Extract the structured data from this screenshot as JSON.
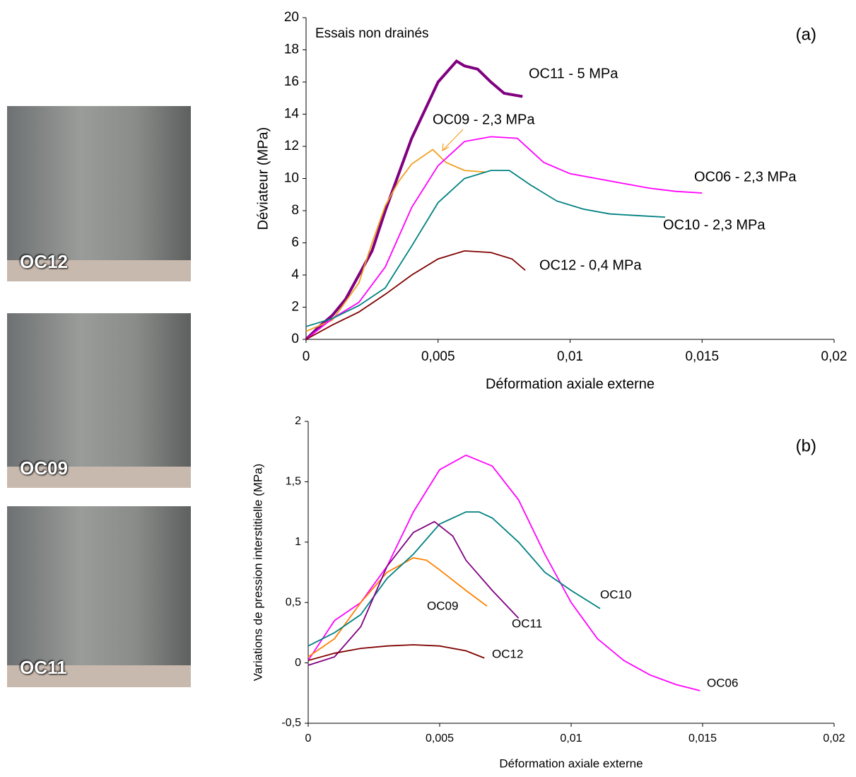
{
  "photos": [
    {
      "label": "OC12"
    },
    {
      "label": "OC09"
    },
    {
      "label": "OC11"
    }
  ],
  "chart_data": [
    {
      "type": "line",
      "annotations": [
        "Essais non drainés",
        "(a)"
      ],
      "xlabel": "Déformation axiale externe",
      "ylabel": "Déviateur (MPa)",
      "xlim": [
        0,
        0.02
      ],
      "ylim": [
        0,
        20
      ],
      "xticks": [
        0,
        {
          "value": 0.005,
          "label": "0,005"
        },
        {
          "value": 0.01,
          "label": "0,01"
        },
        {
          "value": 0.015,
          "label": "0,015"
        },
        {
          "value": 0.02,
          "label": "0,02"
        }
      ],
      "yticks": [
        0,
        2,
        4,
        6,
        8,
        10,
        12,
        14,
        16,
        18,
        20
      ],
      "series": [
        {
          "name": "OC11 - 5 MPa",
          "color": "#800080",
          "x": [
            0,
            0.0005,
            0.001,
            0.0015,
            0.002,
            0.0025,
            0.003,
            0.004,
            0.005,
            0.0057,
            0.006,
            0.0065,
            0.007,
            0.0075,
            0.0082
          ],
          "values": [
            0,
            0.8,
            1.5,
            2.5,
            4,
            5.5,
            8,
            12.5,
            16,
            17.3,
            17,
            16.8,
            16,
            15.3,
            15.1
          ]
        },
        {
          "name": "OC09 - 2,3 MPa",
          "color": "#f0a020",
          "x": [
            0,
            0.001,
            0.002,
            0.0025,
            0.003,
            0.0035,
            0.004,
            0.0048,
            0.0053,
            0.006,
            0.0068
          ],
          "values": [
            0.5,
            1.2,
            3.5,
            6,
            8.3,
            9.8,
            10.9,
            11.8,
            11,
            10.5,
            10.4
          ]
        },
        {
          "name": "OC06 - 2,3 MPa",
          "color": "#ff00ff",
          "x": [
            0,
            0.001,
            0.002,
            0.003,
            0.004,
            0.005,
            0.006,
            0.007,
            0.008,
            0.009,
            0.01,
            0.011,
            0.012,
            0.013,
            0.014,
            0.015
          ],
          "values": [
            0,
            1.3,
            2.3,
            4.5,
            8.2,
            10.8,
            12.3,
            12.6,
            12.5,
            11,
            10.3,
            10,
            9.7,
            9.4,
            9.2,
            9.1
          ]
        },
        {
          "name": "OC10 - 2,3 MPa",
          "color": "#008080",
          "x": [
            0,
            0.001,
            0.002,
            0.003,
            0.004,
            0.005,
            0.006,
            0.007,
            0.0077,
            0.0085,
            0.0095,
            0.0105,
            0.0115,
            0.0125,
            0.0136
          ],
          "values": [
            0.8,
            1.3,
            2.1,
            3.2,
            5.8,
            8.5,
            10,
            10.5,
            10.5,
            9.6,
            8.6,
            8.1,
            7.8,
            7.7,
            7.6
          ]
        },
        {
          "name": "OC12 - 0,4 MPa",
          "color": "#800000",
          "x": [
            0,
            0.001,
            0.002,
            0.003,
            0.004,
            0.005,
            0.006,
            0.007,
            0.0078,
            0.0083
          ],
          "values": [
            0,
            0.9,
            1.7,
            2.8,
            4,
            5,
            5.5,
            5.4,
            5,
            4.3
          ]
        }
      ]
    },
    {
      "type": "line",
      "annotations": [
        "(b)"
      ],
      "xlabel": "Déformation axiale externe",
      "ylabel": "Variations de pression interstitielle (MPa)",
      "xlim": [
        0,
        0.02
      ],
      "ylim": [
        -0.5,
        2
      ],
      "xticks": [
        0,
        {
          "value": 0.005,
          "label": "0,005"
        },
        {
          "value": 0.01,
          "label": "0,01"
        },
        {
          "value": 0.015,
          "label": "0,015"
        },
        {
          "value": 0.02,
          "label": "0,02"
        }
      ],
      "yticks": [
        {
          "value": -0.5,
          "label": "-0,5"
        },
        0,
        {
          "value": 0.5,
          "label": "0,5"
        },
        1,
        {
          "value": 1.5,
          "label": "1,5"
        },
        2
      ],
      "series": [
        {
          "name": "OC06",
          "color": "#ff00ff",
          "x": [
            0,
            0.001,
            0.002,
            0.003,
            0.004,
            0.005,
            0.006,
            0.007,
            0.008,
            0.009,
            0.01,
            0.011,
            0.012,
            0.013,
            0.014,
            0.0149
          ],
          "values": [
            0.02,
            0.35,
            0.5,
            0.8,
            1.25,
            1.6,
            1.72,
            1.63,
            1.35,
            0.9,
            0.5,
            0.2,
            0.02,
            -0.1,
            -0.18,
            -0.23
          ]
        },
        {
          "name": "OC09",
          "color": "#ff8000",
          "x": [
            0,
            0.001,
            0.002,
            0.003,
            0.004,
            0.0045,
            0.005,
            0.006,
            0.0068
          ],
          "values": [
            0.05,
            0.2,
            0.5,
            0.75,
            0.87,
            0.85,
            0.77,
            0.6,
            0.47
          ]
        },
        {
          "name": "OC10",
          "color": "#008080",
          "x": [
            0,
            0.001,
            0.002,
            0.003,
            0.004,
            0.005,
            0.006,
            0.0065,
            0.007,
            0.008,
            0.009,
            0.01,
            0.0111
          ],
          "values": [
            0.14,
            0.25,
            0.4,
            0.7,
            0.9,
            1.15,
            1.25,
            1.25,
            1.2,
            1.0,
            0.75,
            0.6,
            0.45
          ]
        },
        {
          "name": "OC11",
          "color": "#800080",
          "x": [
            0,
            0.001,
            0.002,
            0.003,
            0.004,
            0.0048,
            0.0055,
            0.006,
            0.007,
            0.008
          ],
          "values": [
            -0.02,
            0.05,
            0.3,
            0.8,
            1.08,
            1.17,
            1.05,
            0.85,
            0.6,
            0.37
          ]
        },
        {
          "name": "OC12",
          "color": "#800000",
          "x": [
            0,
            0.001,
            0.002,
            0.003,
            0.004,
            0.005,
            0.006,
            0.0067
          ],
          "values": [
            0.02,
            0.08,
            0.12,
            0.14,
            0.15,
            0.14,
            0.1,
            0.04
          ]
        }
      ]
    }
  ]
}
